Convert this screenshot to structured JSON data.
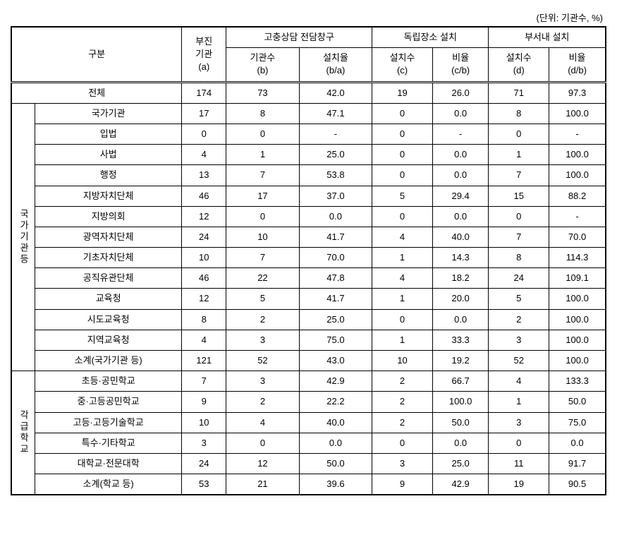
{
  "unit_label": "(단위: 기관수, %)",
  "headers": {
    "category": "구분",
    "col_a": "부진\n기관\n(a)",
    "group1": "고충상담 전담창구",
    "group1_b": "기관수\n(b)",
    "group1_ba": "설치율\n(b/a)",
    "group2": "독립장소 설치",
    "group2_c": "설치수\n(c)",
    "group2_cb": "비율\n(c/b)",
    "group3": "부서내 설치",
    "group3_d": "설치수\n(d)",
    "group3_db": "비율\n(d/b)"
  },
  "section1_label": "국가기관등",
  "section2_label": "각급학교",
  "total_row": {
    "label": "전체",
    "a": "174",
    "b": "73",
    "ba": "42.0",
    "c": "19",
    "cb": "26.0",
    "d": "71",
    "db": "97.3"
  },
  "section1": [
    {
      "label": "국가기관",
      "a": "17",
      "b": "8",
      "ba": "47.1",
      "c": "0",
      "cb": "0.0",
      "d": "8",
      "db": "100.0"
    },
    {
      "label": "입법",
      "a": "0",
      "b": "0",
      "ba": "-",
      "c": "0",
      "cb": "-",
      "d": "0",
      "db": "-"
    },
    {
      "label": "사법",
      "a": "4",
      "b": "1",
      "ba": "25.0",
      "c": "0",
      "cb": "0.0",
      "d": "1",
      "db": "100.0"
    },
    {
      "label": "행정",
      "a": "13",
      "b": "7",
      "ba": "53.8",
      "c": "0",
      "cb": "0.0",
      "d": "7",
      "db": "100.0"
    },
    {
      "label": "지방자치단체",
      "a": "46",
      "b": "17",
      "ba": "37.0",
      "c": "5",
      "cb": "29.4",
      "d": "15",
      "db": "88.2"
    },
    {
      "label": "지방의회",
      "a": "12",
      "b": "0",
      "ba": "0.0",
      "c": "0",
      "cb": "0.0",
      "d": "0",
      "db": "-"
    },
    {
      "label": "광역자치단체",
      "a": "24",
      "b": "10",
      "ba": "41.7",
      "c": "4",
      "cb": "40.0",
      "d": "7",
      "db": "70.0"
    },
    {
      "label": "기초자치단체",
      "a": "10",
      "b": "7",
      "ba": "70.0",
      "c": "1",
      "cb": "14.3",
      "d": "8",
      "db": "114.3"
    },
    {
      "label": "공직유관단체",
      "a": "46",
      "b": "22",
      "ba": "47.8",
      "c": "4",
      "cb": "18.2",
      "d": "24",
      "db": "109.1"
    },
    {
      "label": "교육청",
      "a": "12",
      "b": "5",
      "ba": "41.7",
      "c": "1",
      "cb": "20.0",
      "d": "5",
      "db": "100.0"
    },
    {
      "label": "시도교육청",
      "a": "8",
      "b": "2",
      "ba": "25.0",
      "c": "0",
      "cb": "0.0",
      "d": "2",
      "db": "100.0"
    },
    {
      "label": "지역교육청",
      "a": "4",
      "b": "3",
      "ba": "75.0",
      "c": "1",
      "cb": "33.3",
      "d": "3",
      "db": "100.0"
    },
    {
      "label": "소계(국가기관 등)",
      "a": "121",
      "b": "52",
      "ba": "43.0",
      "c": "10",
      "cb": "19.2",
      "d": "52",
      "db": "100.0"
    }
  ],
  "section2": [
    {
      "label": "초등·공민학교",
      "a": "7",
      "b": "3",
      "ba": "42.9",
      "c": "2",
      "cb": "66.7",
      "d": "4",
      "db": "133.3"
    },
    {
      "label": "중·고등공민학교",
      "a": "9",
      "b": "2",
      "ba": "22.2",
      "c": "2",
      "cb": "100.0",
      "d": "1",
      "db": "50.0"
    },
    {
      "label": "고등·고등기술학교",
      "a": "10",
      "b": "4",
      "ba": "40.0",
      "c": "2",
      "cb": "50.0",
      "d": "3",
      "db": "75.0"
    },
    {
      "label": "특수·기타학교",
      "a": "3",
      "b": "0",
      "ba": "0.0",
      "c": "0",
      "cb": "0.0",
      "d": "0",
      "db": "0.0"
    },
    {
      "label": "대학교·전문대학",
      "a": "24",
      "b": "12",
      "ba": "50.0",
      "c": "3",
      "cb": "25.0",
      "d": "11",
      "db": "91.7"
    },
    {
      "label": "소계(학교 등)",
      "a": "53",
      "b": "21",
      "ba": "39.6",
      "c": "9",
      "cb": "42.9",
      "d": "19",
      "db": "90.5"
    }
  ]
}
